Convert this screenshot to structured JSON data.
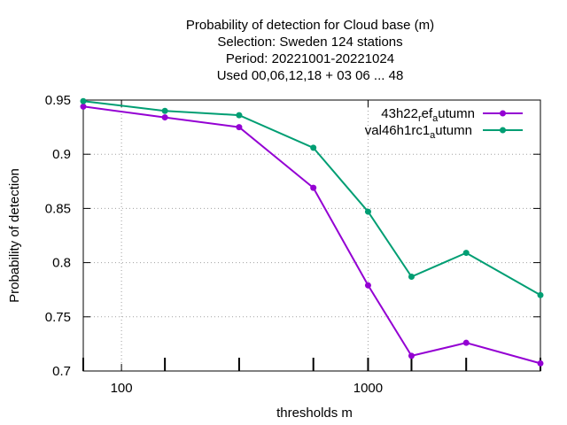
{
  "chart_data": {
    "type": "line",
    "title_lines": [
      "Probability of detection  for Cloud base (m)",
      "Selection: Sweden    124 stations",
      "Period: 20221001-20221024",
      "Used  00,06,12,18  + 03 06 ... 48"
    ],
    "xlabel": "thresholds m",
    "ylabel": "Probability of detection",
    "x_scale": "log",
    "xlim": [
      70,
      5000
    ],
    "ylim": [
      0.7,
      0.95
    ],
    "x_ticks": [
      100,
      1000
    ],
    "x_tick_labels": [
      "100",
      "1000"
    ],
    "y_ticks": [
      0.7,
      0.75,
      0.8,
      0.85,
      0.9,
      0.95
    ],
    "y_tick_labels": [
      "0.7",
      "0.75",
      "0.8",
      "0.85",
      "0.9",
      "0.95"
    ],
    "grid": true,
    "legend_position": "top-right",
    "x": [
      70,
      150,
      300,
      600,
      1000,
      1500,
      2500,
      5000
    ],
    "series": [
      {
        "name_main": "43h22",
        "name_sub1": "r",
        "name_mid": "ef",
        "name_sub2": "a",
        "name_end": "utumn",
        "color": "#9400d3",
        "values": [
          0.944,
          0.934,
          0.925,
          0.869,
          0.779,
          0.714,
          0.726,
          0.707
        ]
      },
      {
        "name_main": "val46h1rc1",
        "name_sub1": "",
        "name_mid": "",
        "name_sub2": "a",
        "name_end": "utumn",
        "color": "#009e73",
        "values": [
          0.949,
          0.94,
          0.936,
          0.906,
          0.847,
          0.787,
          0.809,
          0.77
        ]
      }
    ]
  }
}
